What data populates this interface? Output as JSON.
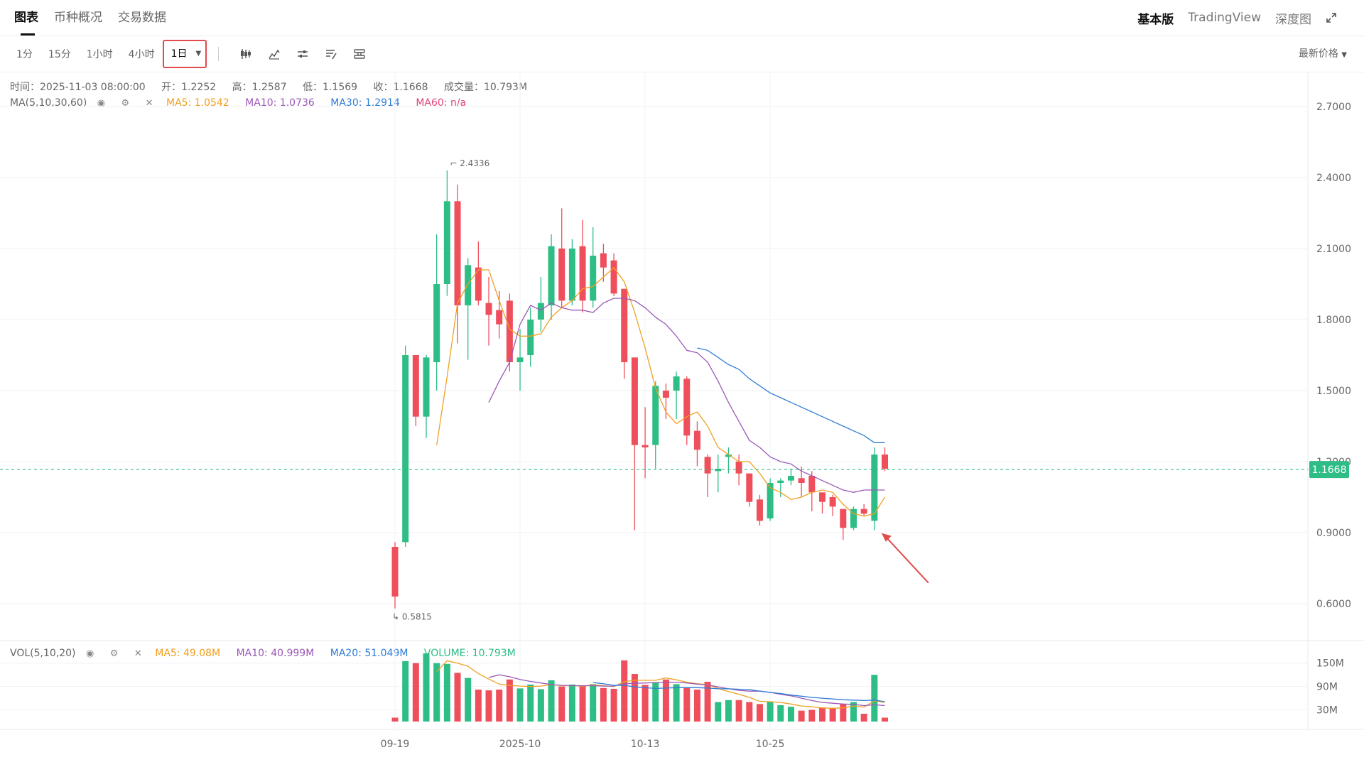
{
  "tabs": {
    "chart": "图表",
    "overview": "币种概况",
    "trade_data": "交易数据"
  },
  "views": {
    "basic": "基本版",
    "tradingview": "TradingView",
    "depth": "深度图"
  },
  "intervals": [
    "1分",
    "15分",
    "1小时",
    "4小时",
    "1日"
  ],
  "price_type": "最新价格",
  "ohlc": {
    "time": "时间：2025-11-03 08:00:00",
    "open": "开：1.2252",
    "high": "高：1.2587",
    "low": "低：1.1569",
    "close": "收：1.1668",
    "volume": "成交量：10.793M"
  },
  "ma_indicator": {
    "name": "MA(5,10,30,60)",
    "ma5": "MA5: 1.0542",
    "ma10": "MA10: 1.0736",
    "ma30": "MA30: 1.2914",
    "ma60": "MA60: n/a"
  },
  "vol_indicator": {
    "name": "VOL(5,10,20)",
    "ma5": "MA5: 49.08M",
    "ma10": "MA10: 40.999M",
    "ma20": "MA20: 51.049M",
    "volume": "VOLUME: 10.793M"
  },
  "colors": {
    "up": "#2ebd85",
    "down": "#ef4e5b",
    "ma5": "#f0a020",
    "ma10": "#9b59b6",
    "ma30": "#2e7dd7",
    "ma60": "#e0457b"
  },
  "chart_data": {
    "type": "candlestick",
    "price_axis": {
      "ticks": [
        "2.7000",
        "2.4000",
        "2.1000",
        "1.8000",
        "1.5000",
        "1.2000",
        "0.9000",
        "0.6000"
      ],
      "range": [
        0.45,
        2.76
      ]
    },
    "volume_axis": {
      "ticks": [
        "150M",
        "90M",
        "30M"
      ],
      "range": [
        0,
        175
      ]
    },
    "x_ticks": [
      {
        "label": "09-19",
        "index": 0
      },
      {
        "label": "2025-10",
        "index": 12
      },
      {
        "label": "10-13",
        "index": 24
      },
      {
        "label": "10-25",
        "index": 36
      }
    ],
    "last_price": "1.1668",
    "high_marker": {
      "label": "2.4336",
      "index": 5
    },
    "low_marker": {
      "label": "0.5815",
      "index": 0
    },
    "candles": [
      [
        0.84,
        0.63,
        0.86,
        0.58
      ],
      [
        0.86,
        1.65,
        1.69,
        0.84
      ],
      [
        1.65,
        1.39,
        1.65,
        1.35
      ],
      [
        1.39,
        1.64,
        1.65,
        1.3
      ],
      [
        1.62,
        1.95,
        2.16,
        1.5
      ],
      [
        1.95,
        2.3,
        2.43,
        1.9
      ],
      [
        2.3,
        1.86,
        2.37,
        1.7
      ],
      [
        1.86,
        2.03,
        2.06,
        1.63
      ],
      [
        2.02,
        1.88,
        2.13,
        1.86
      ],
      [
        1.87,
        1.82,
        1.98,
        1.69
      ],
      [
        1.84,
        1.78,
        1.92,
        1.72
      ],
      [
        1.88,
        1.62,
        1.91,
        1.58
      ],
      [
        1.62,
        1.64,
        1.76,
        1.5
      ],
      [
        1.65,
        1.8,
        1.85,
        1.6
      ],
      [
        1.8,
        1.87,
        1.98,
        1.75
      ],
      [
        1.86,
        2.11,
        2.16,
        1.8
      ],
      [
        2.1,
        1.88,
        2.27,
        1.85
      ],
      [
        1.88,
        2.1,
        2.14,
        1.86
      ],
      [
        2.11,
        1.88,
        2.22,
        1.83
      ],
      [
        1.88,
        2.07,
        2.19,
        1.85
      ],
      [
        2.08,
        2.02,
        2.12,
        1.96
      ],
      [
        2.05,
        1.91,
        2.08,
        1.9
      ],
      [
        1.93,
        1.62,
        1.93,
        1.55
      ],
      [
        1.64,
        1.27,
        1.64,
        0.91
      ],
      [
        1.27,
        1.26,
        1.43,
        1.13
      ],
      [
        1.27,
        1.52,
        1.54,
        1.17
      ],
      [
        1.5,
        1.47,
        1.53,
        1.38
      ],
      [
        1.5,
        1.56,
        1.58,
        1.38
      ],
      [
        1.55,
        1.31,
        1.56,
        1.27
      ],
      [
        1.33,
        1.25,
        1.37,
        1.18
      ],
      [
        1.22,
        1.15,
        1.23,
        1.05
      ],
      [
        1.16,
        1.17,
        1.23,
        1.07
      ],
      [
        1.22,
        1.23,
        1.26,
        1.15
      ],
      [
        1.2,
        1.15,
        1.23,
        1.1
      ],
      [
        1.15,
        1.03,
        1.15,
        1.01
      ],
      [
        1.04,
        0.95,
        1.06,
        0.93
      ],
      [
        0.96,
        1.11,
        1.13,
        0.95
      ],
      [
        1.11,
        1.12,
        1.13,
        1.05
      ],
      [
        1.12,
        1.14,
        1.17,
        1.1
      ],
      [
        1.13,
        1.11,
        1.18,
        1.05
      ],
      [
        1.14,
        1.07,
        1.16,
        0.99
      ],
      [
        1.07,
        1.03,
        1.07,
        0.98
      ],
      [
        1.05,
        1.01,
        1.06,
        0.97
      ],
      [
        1.0,
        0.92,
        1.0,
        0.87
      ],
      [
        0.92,
        1.0,
        1.01,
        0.91
      ],
      [
        1.0,
        0.98,
        1.02,
        0.97
      ],
      [
        0.95,
        1.23,
        1.26,
        0.91
      ],
      [
        1.23,
        1.17,
        1.26,
        1.16
      ]
    ],
    "volume": [
      10,
      155,
      150,
      175,
      150,
      148,
      125,
      112,
      82,
      80,
      82,
      108,
      85,
      95,
      83,
      106,
      90,
      95,
      92,
      96,
      86,
      84,
      157,
      122,
      94,
      100,
      108,
      96,
      88,
      82,
      102,
      50,
      55,
      55,
      50,
      45,
      50,
      42,
      38,
      28,
      30,
      36,
      35,
      45,
      50,
      20,
      120,
      10
    ],
    "ma5": [
      null,
      null,
      null,
      null,
      1.27,
      1.56,
      1.87,
      1.95,
      2.01,
      2.01,
      1.88,
      1.76,
      1.73,
      1.73,
      1.74,
      1.81,
      1.85,
      1.88,
      1.93,
      1.94,
      1.98,
      2.02,
      1.96,
      1.83,
      1.68,
      1.51,
      1.41,
      1.36,
      1.39,
      1.41,
      1.35,
      1.26,
      1.23,
      1.2,
      1.2,
      1.15,
      1.09,
      1.07,
      1.04,
      1.05,
      1.07,
      1.08,
      1.07,
      1.02,
      0.98,
      0.97,
      0.98,
      1.05
    ],
    "ma10": [
      null,
      null,
      null,
      null,
      null,
      null,
      null,
      null,
      null,
      1.45,
      1.54,
      1.62,
      1.78,
      1.86,
      1.84,
      1.87,
      1.85,
      1.84,
      1.84,
      1.83,
      1.87,
      1.89,
      1.89,
      1.88,
      1.85,
      1.81,
      1.78,
      1.73,
      1.67,
      1.66,
      1.62,
      1.54,
      1.45,
      1.37,
      1.29,
      1.26,
      1.22,
      1.2,
      1.19,
      1.16,
      1.14,
      1.12,
      1.1,
      1.08,
      1.07,
      1.08,
      1.08,
      1.08
    ],
    "ma30": [
      null,
      null,
      null,
      null,
      null,
      null,
      null,
      null,
      null,
      null,
      null,
      null,
      null,
      null,
      null,
      null,
      null,
      null,
      null,
      null,
      null,
      null,
      null,
      null,
      null,
      null,
      null,
      null,
      null,
      1.68,
      1.67,
      1.64,
      1.61,
      1.59,
      1.55,
      1.52,
      1.49,
      1.47,
      1.45,
      1.43,
      1.41,
      1.39,
      1.37,
      1.35,
      1.33,
      1.31,
      1.28,
      1.28
    ],
    "vol_ma5": [
      null,
      null,
      null,
      null,
      128,
      156,
      150,
      142,
      123,
      109,
      96,
      93,
      91,
      90,
      91,
      95,
      92,
      92,
      91,
      94,
      92,
      90,
      102,
      106,
      106,
      106,
      112,
      107,
      101,
      97,
      95,
      85,
      77,
      70,
      62,
      52,
      51,
      49,
      45,
      40,
      38,
      35,
      34,
      35,
      40,
      37,
      53,
      49
    ],
    "vol_ma10": [
      null,
      null,
      null,
      null,
      null,
      null,
      null,
      null,
      null,
      113,
      120,
      115,
      108,
      103,
      99,
      95,
      93,
      92,
      92,
      92,
      91,
      91,
      97,
      98,
      99,
      100,
      101,
      101,
      99,
      96,
      94,
      89,
      84,
      80,
      78,
      78,
      75,
      70,
      66,
      60,
      54,
      49,
      47,
      45,
      44,
      41,
      43,
      41
    ],
    "vol_ma20": [
      null,
      null,
      null,
      null,
      null,
      null,
      null,
      null,
      null,
      null,
      null,
      null,
      null,
      null,
      null,
      null,
      null,
      null,
      null,
      100,
      97,
      93,
      93,
      89,
      87,
      85,
      86,
      87,
      87,
      87,
      86,
      84,
      84,
      83,
      82,
      78,
      75,
      72,
      68,
      65,
      62,
      60,
      58,
      56,
      55,
      54,
      55,
      51
    ]
  }
}
